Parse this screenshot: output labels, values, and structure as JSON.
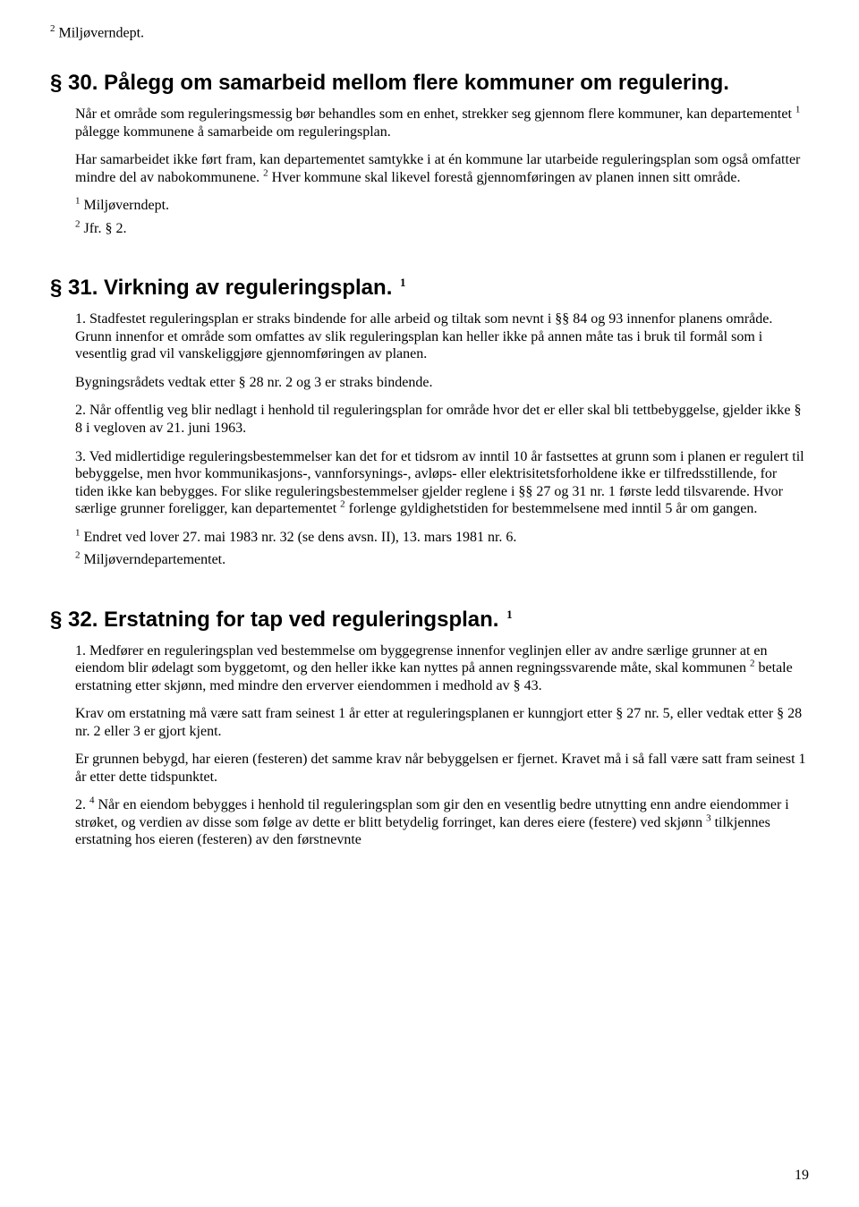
{
  "page_number": "19",
  "colors": {
    "background": "#ffffff",
    "text": "#000000"
  },
  "typography": {
    "body_font": "Times New Roman",
    "body_size_pt": 12,
    "heading_font": "Arial",
    "heading_size_pt": 18,
    "heading_weight": "bold"
  },
  "top_footnote": {
    "sup": "2",
    "text": " Miljøverndept."
  },
  "section30": {
    "heading": "§ 30. Pålegg om samarbeid mellom flere kommuner om regulering.",
    "p1_a": "Når et område som reguleringsmessig bør behandles som en enhet, strekker seg gjennom flere kommuner, kan departementet ",
    "p1_sup": "1",
    "p1_b": " pålegge kommunene å samarbeide om reguleringsplan.",
    "p2_a": "Har samarbeidet ikke ført fram, kan departementet samtykke i at én kommune lar utarbeide reguleringsplan som også omfatter mindre del av nabokommunene. ",
    "p2_sup": "2",
    "p2_b": " Hver kommune skal likevel forestå gjennomføringen av planen innen sitt område.",
    "fn1": {
      "sup": "1",
      "text": " Miljøverndept."
    },
    "fn2": {
      "sup": "2",
      "text": " Jfr. § 2."
    }
  },
  "section31": {
    "heading": "§ 31. Virkning av reguleringsplan. ",
    "heading_sup": "1",
    "p1": "1. Stadfestet reguleringsplan er straks bindende for alle arbeid og tiltak som nevnt i §§ 84 og 93 innenfor planens område. Grunn innenfor et område som omfattes av slik reguleringsplan kan heller ikke på annen måte tas i bruk til formål som i vesentlig grad vil vanskeliggjøre gjennomføringen av planen.",
    "p2": "Bygningsrådets vedtak etter § 28 nr. 2 og 3 er straks bindende.",
    "p3": "2. Når offentlig veg blir nedlagt i henhold til reguleringsplan for område hvor det er eller skal bli tettbebyggelse, gjelder ikke § 8 i vegloven av 21. juni 1963.",
    "p4_a": "3. Ved midlertidige reguleringsbestemmelser kan det for et tidsrom av inntil 10 år fastsettes at grunn som i planen er regulert til bebyggelse, men hvor kommunikasjons-, vannforsynings-, avløps- eller elektrisitetsforholdene ikke er tilfredsstillende, for tiden ikke kan bebygges. For slike reguleringsbestemmelser gjelder reglene i §§ 27 og 31 nr. 1 første ledd tilsvarende. Hvor særlige grunner foreligger, kan departementet ",
    "p4_sup": "2",
    "p4_b": " forlenge gyldighetstiden for bestemmelsene med inntil 5 år om gangen.",
    "fn1": {
      "sup": "1",
      "text": " Endret ved lover 27. mai 1983 nr. 32 (se dens avsn. II), 13. mars 1981 nr. 6."
    },
    "fn2": {
      "sup": "2",
      "text": " Miljøverndepartementet."
    }
  },
  "section32": {
    "heading": "§ 32. Erstatning for tap ved reguleringsplan. ",
    "heading_sup": "1",
    "p1_a": "1. Medfører en reguleringsplan ved bestemmelse om byggegrense innenfor veglinjen eller av andre særlige grunner at en eiendom blir ødelagt som byggetomt, og den heller ikke kan nyttes på annen regningssvarende måte, skal kommunen ",
    "p1_sup": "2",
    "p1_b": " betale erstatning etter skjønn, med mindre den erverver eiendommen i medhold av § 43.",
    "p2": "Krav om erstatning må være satt fram seinest 1 år etter at reguleringsplanen er kunngjort etter § 27 nr. 5, eller vedtak etter § 28 nr. 2 eller 3 er gjort kjent.",
    "p3": "Er grunnen bebygd, har eieren (festeren) det samme krav når bebyggelsen er fjernet. Kravet må i så fall være satt fram seinest 1 år etter dette tidspunktet.",
    "p4_a": "2. ",
    "p4_sup1": "4",
    "p4_b": " Når en eiendom bebygges i henhold til reguleringsplan som gir den en vesentlig bedre utnytting enn andre eiendommer i strøket, og verdien av disse som følge av dette er blitt betydelig forringet, kan deres eiere (festere) ved skjønn ",
    "p4_sup2": "3",
    "p4_c": " tilkjennes erstatning hos eieren (festeren) av den førstnevnte"
  }
}
